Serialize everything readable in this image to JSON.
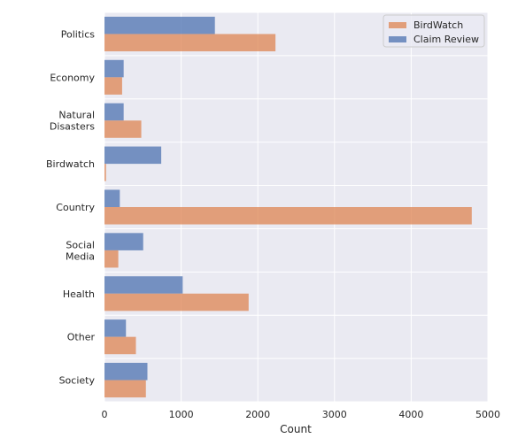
{
  "chart_data": {
    "type": "bar",
    "orientation": "horizontal",
    "categories": [
      "Politics",
      "Economy",
      "Natural\nDisasters",
      "Birdwatch",
      "Country",
      "Social\nMedia",
      "Health",
      "Other",
      "Society"
    ],
    "series": [
      {
        "name": "Claim Review",
        "color": "#4c72b0",
        "values": [
          1440,
          250,
          250,
          740,
          200,
          505,
          1020,
          280,
          560
        ]
      },
      {
        "name": "BirdWatch",
        "color": "#dd8452",
        "values": [
          2230,
          230,
          480,
          20,
          4790,
          180,
          1880,
          410,
          540
        ]
      }
    ],
    "xlabel": "Count",
    "ylabel": "",
    "xlim": [
      0,
      5000
    ],
    "xticks": [
      0,
      1000,
      2000,
      3000,
      4000,
      5000
    ],
    "grid": true,
    "legend": {
      "placement": "top-right",
      "entries": [
        {
          "name": "BirdWatch",
          "color": "#dd8452"
        },
        {
          "name": "Claim Review",
          "color": "#4c72b0"
        }
      ]
    },
    "background": "#eaeaf2"
  }
}
